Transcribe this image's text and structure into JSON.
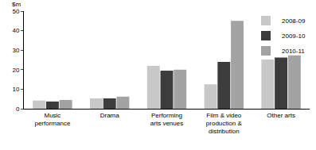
{
  "chart_data": {
    "type": "bar",
    "ylabel": "$m",
    "categories": [
      "Music performance",
      "Drama",
      "Performing arts venues",
      "Film & video production & distribution",
      "Other arts"
    ],
    "series": [
      {
        "name": "2008-09",
        "color": "#c8c8c8",
        "values": [
          4.2,
          5.3,
          22,
          12.5,
          25.2
        ]
      },
      {
        "name": "2009-10",
        "color": "#3c3c3c",
        "values": [
          3.7,
          5.3,
          19.5,
          24,
          26.2
        ]
      },
      {
        "name": "2010-11",
        "color": "#a3a3a3",
        "values": [
          4.5,
          6.2,
          20,
          45,
          27.3
        ]
      }
    ],
    "ylim": [
      0,
      50
    ],
    "yticks": [
      0,
      10,
      20,
      30,
      40,
      50
    ],
    "grid": true,
    "legend": "top-right"
  }
}
